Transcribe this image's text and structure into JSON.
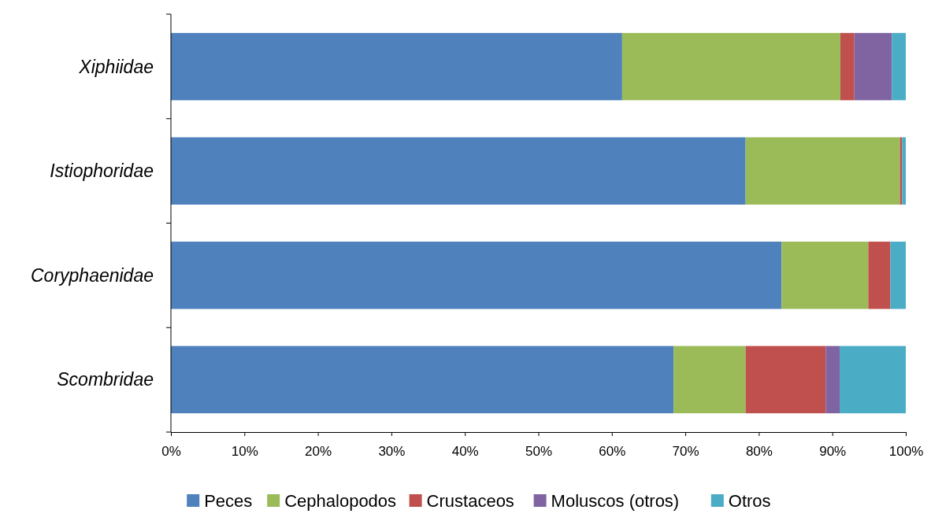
{
  "chart_data": {
    "type": "bar",
    "orientation": "horizontal",
    "stacked": true,
    "legend": "bottom",
    "grid": false,
    "categories": [
      "Xiphiidae",
      "Istiophoridae",
      "Coryphaenidae",
      "Scombridae"
    ],
    "series": [
      {
        "name": "Peces",
        "color": "#4f81bd",
        "values": [
          61.4,
          78.2,
          83.1,
          68.4
        ]
      },
      {
        "name": "Cephalopodos",
        "color": "#9bbb59",
        "values": [
          29.7,
          21.0,
          11.8,
          9.8
        ]
      },
      {
        "name": "Crustaceos",
        "color": "#c0504d",
        "values": [
          1.9,
          0.3,
          3.0,
          10.9
        ]
      },
      {
        "name": "Moluscos (otros)",
        "color": "#8064a2",
        "values": [
          5.1,
          0,
          0,
          1.9
        ]
      },
      {
        "name": "Otros",
        "color": "#4bacc6",
        "values": [
          1.9,
          0.5,
          2.1,
          9.0
        ]
      }
    ],
    "xlim": [
      0,
      100
    ],
    "xticks": [
      {
        "value": 0,
        "label": "0%"
      },
      {
        "value": 10,
        "label": "10%"
      },
      {
        "value": 20,
        "label": "20%"
      },
      {
        "value": 30,
        "label": "30%"
      },
      {
        "value": 40,
        "label": "40%"
      },
      {
        "value": 50,
        "label": "50%"
      },
      {
        "value": 60,
        "label": "60%"
      },
      {
        "value": 70,
        "label": "70%"
      },
      {
        "value": 80,
        "label": "80%"
      },
      {
        "value": 90,
        "label": "90%"
      },
      {
        "value": 100,
        "label": "100%"
      }
    ]
  }
}
